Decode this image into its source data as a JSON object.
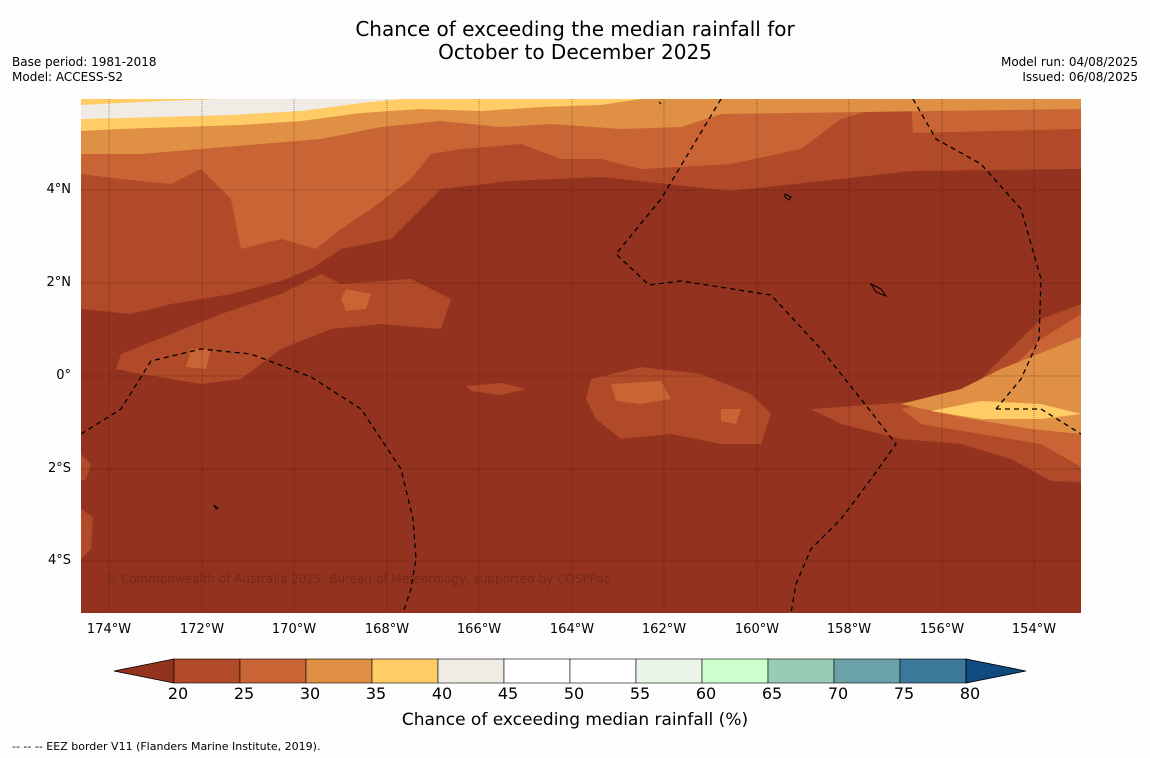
{
  "title_line1": "Chance of exceeding the median rainfall for",
  "title_line2": "October to December 2025",
  "meta_left": {
    "base_period": "Base period: 1981-2018",
    "model": "Model: ACCESS-S2"
  },
  "meta_right": {
    "model_run": "Model run: 04/08/2025",
    "issued": "Issued: 06/08/2025"
  },
  "map": {
    "x_ticks": [
      "174°W",
      "172°W",
      "170°W",
      "168°W",
      "166°W",
      "164°W",
      "162°W",
      "160°W",
      "158°W",
      "156°W",
      "154°W"
    ],
    "y_ticks": [
      "4°N",
      "2°N",
      "0°",
      "2°S",
      "4°S"
    ],
    "copyright": "© Commonwealth of Australia 2025, Bureau of Meteorology, supported by COSPPac"
  },
  "colorbar": {
    "labels": [
      "20",
      "25",
      "30",
      "35",
      "40",
      "45",
      "50",
      "55",
      "60",
      "65",
      "70",
      "75",
      "80"
    ],
    "title": "Chance of exceeding median rainfall (%)",
    "colors": [
      "#943220",
      "#b04a28",
      "#c96535",
      "#e09045",
      "#ffcc66",
      "#f0ece5",
      "#ffffff",
      "#ffffff",
      "#eaf5ea",
      "#ccffcc",
      "#99ccb5",
      "#6aa2a8",
      "#3c7899",
      "#104b80"
    ]
  },
  "footer": "--  --  -- EEZ border V11 (Flanders Marine Institute, 2019)."
}
